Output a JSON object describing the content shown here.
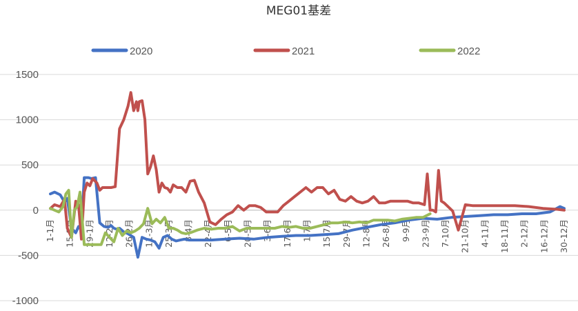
{
  "chart_data": {
    "type": "line",
    "title": "MEG01基差",
    "xlabel": "",
    "ylabel": "",
    "ylim": [
      -1000,
      1500
    ],
    "yticks": [
      1500,
      1000,
      500,
      0,
      -500,
      -1000
    ],
    "grid": true,
    "legend_position": "top",
    "x_tick_labels": [
      "1-1月",
      "15-1月",
      "29-1月",
      "12-2月",
      "26-2月",
      "11-3月",
      "25-3月",
      "8-4月",
      "22-4月",
      "6-5月",
      "20-5月",
      "3-6月",
      "17-6月",
      "1-7月",
      "15-7月",
      "29-7月",
      "12-8月",
      "26-8月",
      "9-9月",
      "23-9月",
      "7-10月",
      "21-10月",
      "4-11月",
      "18-11月",
      "2-12月",
      "16-12月",
      "30-12月"
    ],
    "x_domain": [
      1,
      365
    ],
    "series": [
      {
        "name": "2020",
        "color": "#4472C4",
        "x": [
          1,
          4,
          8,
          11,
          13,
          16,
          19,
          21,
          23,
          25,
          28,
          30,
          33,
          36,
          39,
          42,
          44,
          46,
          48,
          50,
          53,
          56,
          60,
          63,
          66,
          69,
          72,
          75,
          78,
          81,
          84,
          87,
          90,
          93,
          96,
          99,
          105,
          115,
          125,
          135,
          145,
          155,
          165,
          175,
          185,
          195,
          205,
          215,
          225,
          235,
          245,
          255,
          265,
          275,
          285,
          295,
          305,
          315,
          325,
          335,
          345,
          355,
          362,
          365
        ],
        "y": [
          180,
          200,
          170,
          90,
          130,
          -200,
          -250,
          -180,
          -220,
          360,
          360,
          350,
          360,
          -140,
          -180,
          -190,
          -170,
          -200,
          -210,
          -200,
          -240,
          -260,
          -300,
          -520,
          -300,
          -320,
          -330,
          -350,
          -420,
          -300,
          -280,
          -320,
          -340,
          -330,
          -320,
          -330,
          -330,
          -330,
          -320,
          -310,
          -320,
          -300,
          -290,
          -280,
          -280,
          -270,
          -260,
          -220,
          -190,
          -160,
          -140,
          -110,
          -90,
          -100,
          -80,
          -70,
          -60,
          -50,
          -50,
          -40,
          -40,
          -20,
          40,
          20
        ]
      },
      {
        "name": "2021",
        "color": "#C0504D",
        "x": [
          1,
          4,
          8,
          11,
          13,
          16,
          19,
          21,
          23,
          25,
          27,
          29,
          31,
          34,
          36,
          38,
          41,
          44,
          47,
          50,
          53,
          56,
          58,
          60,
          62,
          63,
          64,
          66,
          68,
          70,
          72,
          74,
          76,
          78,
          80,
          82,
          84,
          86,
          88,
          91,
          94,
          97,
          100,
          103,
          106,
          110,
          114,
          118,
          122,
          126,
          130,
          134,
          138,
          142,
          146,
          150,
          154,
          158,
          162,
          166,
          170,
          174,
          178,
          182,
          186,
          190,
          194,
          198,
          202,
          206,
          210,
          214,
          218,
          222,
          226,
          230,
          234,
          238,
          242,
          246,
          250,
          254,
          258,
          262,
          266,
          268,
          270,
          272,
          274,
          276,
          278,
          280,
          282,
          286,
          290,
          295,
          300,
          310,
          320,
          330,
          340,
          350,
          360,
          365
        ],
        "y": [
          20,
          60,
          40,
          120,
          -200,
          -300,
          100,
          60,
          -320,
          200,
          300,
          270,
          350,
          300,
          220,
          250,
          250,
          250,
          260,
          900,
          1000,
          1150,
          1300,
          1100,
          1200,
          1100,
          1200,
          1210,
          1000,
          400,
          480,
          600,
          450,
          200,
          300,
          250,
          240,
          200,
          280,
          250,
          250,
          200,
          320,
          330,
          200,
          80,
          -130,
          -160,
          -100,
          -50,
          -20,
          50,
          0,
          50,
          50,
          30,
          -20,
          -20,
          -20,
          50,
          100,
          150,
          200,
          250,
          200,
          250,
          250,
          180,
          220,
          120,
          100,
          150,
          100,
          80,
          100,
          150,
          80,
          80,
          100,
          100,
          100,
          100,
          80,
          80,
          60,
          400,
          0,
          0,
          -20,
          440,
          100,
          80,
          50,
          -10,
          -220,
          60,
          50,
          50,
          50,
          50,
          40,
          20,
          10,
          0
        ]
      },
      {
        "name": "2022",
        "color": "#9BBB59",
        "x": [
          1,
          4,
          7,
          10,
          12,
          14,
          16,
          18,
          20,
          22,
          25,
          28,
          31,
          34,
          37,
          40,
          43,
          46,
          49,
          52,
          55,
          58,
          61,
          64,
          67,
          70,
          73,
          76,
          79,
          82,
          85,
          88,
          91,
          94,
          97,
          100,
          105,
          110,
          115,
          120,
          125,
          130,
          135,
          140,
          145,
          150,
          155,
          160,
          165,
          170,
          175,
          180,
          185,
          190,
          195,
          200,
          205,
          210,
          215,
          220,
          225,
          230,
          235,
          240,
          245,
          250,
          255,
          260,
          265,
          270
        ],
        "y": [
          20,
          0,
          -20,
          40,
          180,
          220,
          -300,
          0,
          40,
          200,
          -380,
          -380,
          -380,
          -380,
          -380,
          -250,
          -300,
          -350,
          -200,
          -280,
          -230,
          -250,
          -230,
          -200,
          -150,
          20,
          -150,
          -100,
          -140,
          -80,
          -200,
          -200,
          -220,
          -250,
          -260,
          -250,
          -220,
          -200,
          -210,
          -200,
          -200,
          -180,
          -230,
          -200,
          -200,
          -200,
          -200,
          -200,
          -180,
          -190,
          -180,
          -200,
          -200,
          -180,
          -160,
          -140,
          -140,
          -130,
          -140,
          -130,
          -140,
          -110,
          -110,
          -110,
          -120,
          -100,
          -90,
          -80,
          -80,
          -40
        ]
      }
    ]
  }
}
